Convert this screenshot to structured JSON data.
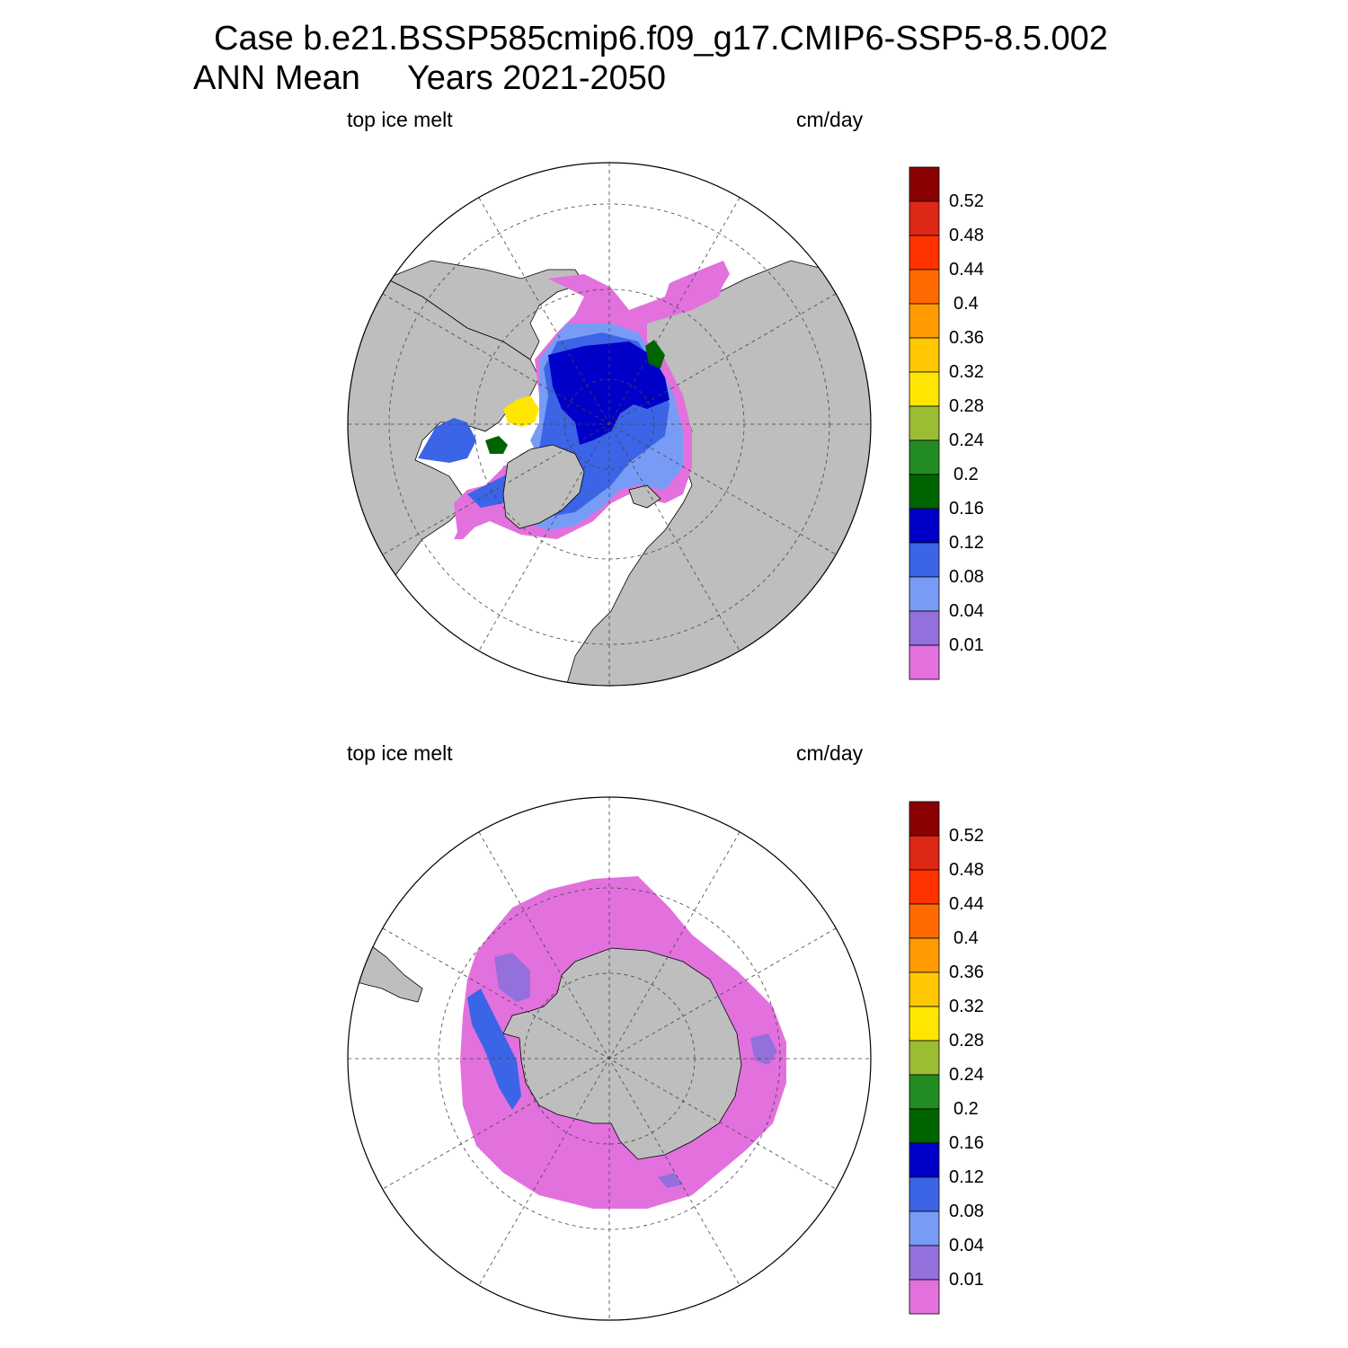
{
  "title": {
    "line1": "Case b.e21.BSSP585cmip6.f09_g17.CMIP6-SSP5-8.5.002",
    "line2": "ANN Mean     Years 2021-2050"
  },
  "colors": {
    "land": "#bebebe",
    "bins": [
      "#e271dd",
      "#9370db",
      "#789cf5",
      "#3c64e6",
      "#0000c8",
      "#006400",
      "#228b22",
      "#9abd34",
      "#ffe600",
      "#ffc800",
      "#ff9b00",
      "#ff6a00",
      "#ff3200",
      "#dc2814",
      "#8b0000"
    ]
  },
  "panels": [
    {
      "name": "arctic",
      "left_label": "top ice melt",
      "right_label": "cm/day",
      "colorbar": {
        "levels": [
          "0.01",
          "0.04",
          "0.08",
          "0.12",
          "0.16",
          "0.2",
          "0.24",
          "0.28",
          "0.32",
          "0.36",
          "0.4",
          "0.44",
          "0.48",
          "0.52"
        ]
      }
    },
    {
      "name": "antarctic",
      "left_label": "top ice melt",
      "right_label": "cm/day",
      "colorbar": {
        "levels": [
          "0.01",
          "0.04",
          "0.08",
          "0.12",
          "0.16",
          "0.2",
          "0.24",
          "0.28",
          "0.32",
          "0.36",
          "0.4",
          "0.44",
          "0.48",
          "0.52"
        ]
      }
    }
  ]
}
